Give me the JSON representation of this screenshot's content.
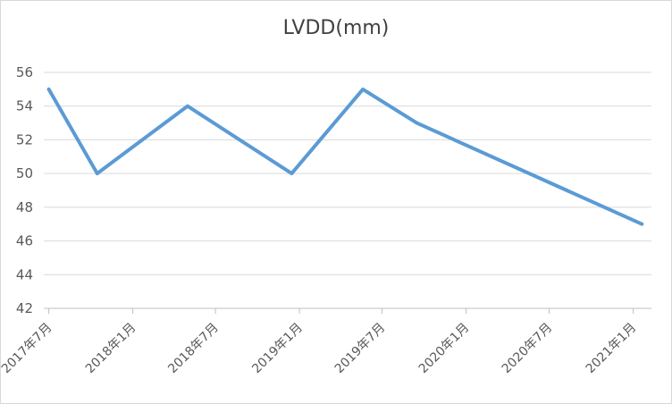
{
  "chart_data": {
    "type": "line",
    "title": "LVDD(mm)",
    "xlabel": "",
    "ylabel": "",
    "ylim": [
      42,
      56
    ],
    "yticks": [
      42,
      44,
      46,
      48,
      50,
      52,
      54,
      56
    ],
    "x_axis_type": "date",
    "xlim": [
      "2017-06-20",
      "2021-02-10"
    ],
    "xtick_labels": [
      {
        "date": "2017-07-01",
        "label": "2017年7月"
      },
      {
        "date": "2018-01-01",
        "label": "2018年1月"
      },
      {
        "date": "2018-07-01",
        "label": "2018年7月"
      },
      {
        "date": "2019-01-01",
        "label": "2019年1月"
      },
      {
        "date": "2019-07-01",
        "label": "2019年7月"
      },
      {
        "date": "2020-01-01",
        "label": "2020年1月"
      },
      {
        "date": "2020-07-01",
        "label": "2020年7月"
      },
      {
        "date": "2021-01-01",
        "label": "2021年1月"
      }
    ],
    "grid": "horizontal",
    "legend": "none",
    "series": [
      {
        "color": "#5b9bd5",
        "points": [
          {
            "x": "2017-07-01",
            "y": 55
          },
          {
            "x": "2017-10-15",
            "y": 50
          },
          {
            "x": "2018-05-01",
            "y": 54
          },
          {
            "x": "2018-12-15",
            "y": 50
          },
          {
            "x": "2019-05-20",
            "y": 55
          },
          {
            "x": "2019-09-15",
            "y": 53
          },
          {
            "x": "2021-01-20",
            "y": 47
          }
        ]
      }
    ]
  }
}
